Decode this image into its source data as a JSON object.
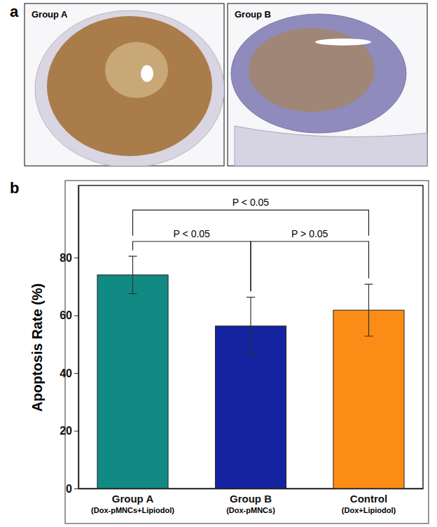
{
  "panels": [
    {
      "label": "a",
      "images": [
        "Group A",
        "Group B"
      ]
    }
  ],
  "chart_data": {
    "panel_label": "b",
    "type": "bar",
    "y_label": "Apoptosis Rate (%)",
    "categories": [
      "Group A",
      "Group B",
      "Control"
    ],
    "category_notes": [
      "(Dox-pMNCs+Lipiodol)",
      "(Dox-pMNCs)",
      "(Dox+Lipiodol)"
    ],
    "values": [
      74,
      56.3,
      61.8
    ],
    "errors": [
      6.5,
      10,
      9
    ],
    "colors": [
      "#128a84",
      "#1424a0",
      "#fb8c15"
    ],
    "ylim": [
      0,
      105
    ],
    "yticks": [
      0,
      20,
      40,
      60,
      80
    ],
    "comparisons": [
      {
        "from": 0,
        "to": 2,
        "y": 96.5,
        "label": "P < 0.05"
      },
      {
        "from": 0,
        "to": 1,
        "y": 85.6,
        "label": "P < 0.05"
      },
      {
        "from": 1,
        "to": 2,
        "y": 85.6,
        "label": "P > 0.05"
      }
    ]
  }
}
